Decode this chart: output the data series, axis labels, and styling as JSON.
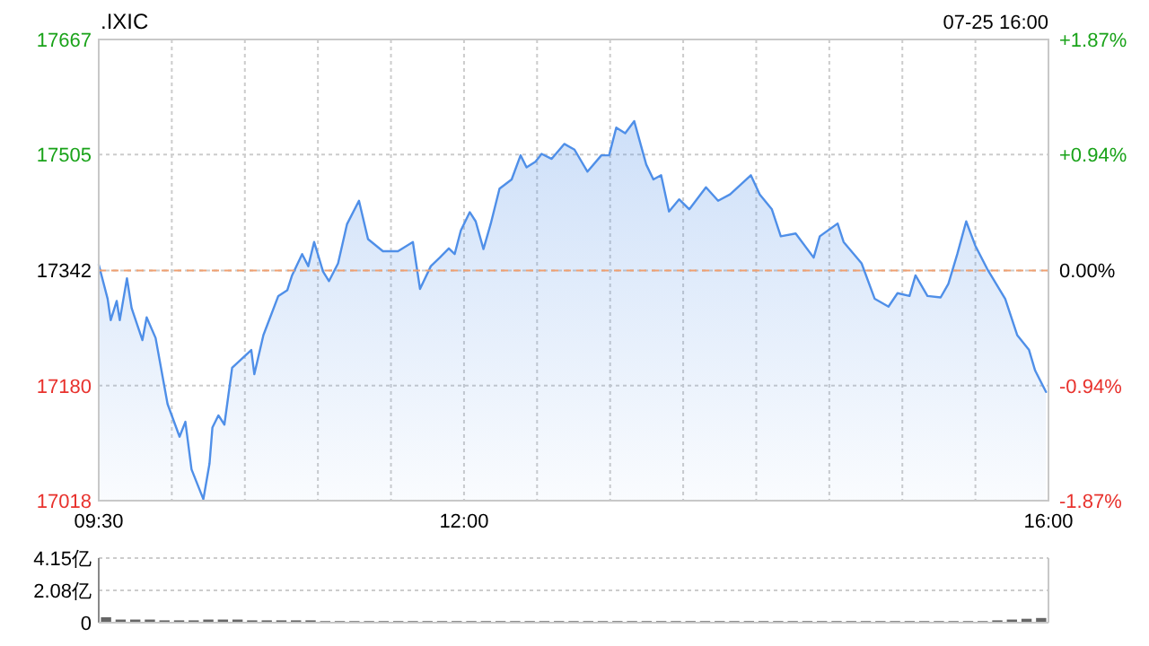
{
  "chart_data": [
    {
      "type": "area",
      "title": ".IXIC",
      "annotations": [
        "07-25 16:00"
      ],
      "x": [
        9.5,
        9.561,
        9.582,
        9.623,
        9.644,
        9.693,
        9.725,
        9.799,
        9.828,
        9.889,
        9.971,
        10.053,
        10.093,
        10.135,
        10.216,
        10.258,
        10.278,
        10.319,
        10.36,
        10.413,
        10.544,
        10.565,
        10.627,
        10.729,
        10.79,
        10.823,
        10.892,
        10.934,
        10.974,
        11.036,
        11.076,
        11.138,
        11.199,
        11.281,
        11.343,
        11.445,
        11.548,
        11.65,
        11.699,
        11.773,
        11.834,
        11.896,
        11.936,
        11.978,
        12.039,
        12.08,
        12.133,
        12.182,
        12.243,
        12.326,
        12.387,
        12.428,
        12.489,
        12.531,
        12.6,
        12.686,
        12.756,
        12.845,
        12.94,
        12.993,
        13.042,
        13.103,
        13.165,
        13.247,
        13.296,
        13.349,
        13.403,
        13.472,
        13.542,
        13.656,
        13.739,
        13.821,
        13.963,
        14.024,
        14.107,
        14.168,
        14.27,
        14.393,
        14.435,
        14.557,
        14.598,
        14.721,
        14.811,
        14.905,
        14.967,
        15.049,
        15.09,
        15.172,
        15.262,
        15.315,
        15.376,
        15.437,
        15.499,
        15.581,
        15.704,
        15.786,
        15.867,
        15.909,
        15.983
      ],
      "series": [
        {
          "color": "#4f8fe8",
          "values": [
            17350,
            17302,
            17272,
            17299,
            17272,
            17331,
            17289,
            17244,
            17276,
            17247,
            17154,
            17108,
            17129,
            17062,
            17020,
            17070,
            17121,
            17138,
            17125,
            17205,
            17230,
            17196,
            17251,
            17306,
            17314,
            17335,
            17365,
            17348,
            17382,
            17340,
            17327,
            17352,
            17407,
            17440,
            17386,
            17369,
            17369,
            17382,
            17316,
            17348,
            17360,
            17373,
            17365,
            17398,
            17424,
            17411,
            17372,
            17407,
            17457,
            17470,
            17504,
            17487,
            17495,
            17506,
            17499,
            17520,
            17512,
            17481,
            17504,
            17504,
            17543,
            17535,
            17552,
            17491,
            17470,
            17476,
            17425,
            17442,
            17428,
            17459,
            17440,
            17449,
            17476,
            17449,
            17428,
            17390,
            17394,
            17360,
            17390,
            17408,
            17382,
            17352,
            17302,
            17291,
            17310,
            17306,
            17335,
            17306,
            17304,
            17323,
            17365,
            17411,
            17377,
            17344,
            17302,
            17251,
            17230,
            17201,
            17171
          ]
        }
      ],
      "xlim": [
        9.5,
        16
      ],
      "xticks": [
        {
          "value": 9.5,
          "label": "09:30"
        },
        {
          "value": 10,
          "label": null
        },
        {
          "value": 10.5,
          "label": null
        },
        {
          "value": 11,
          "label": null
        },
        {
          "value": 11.5,
          "label": null
        },
        {
          "value": 12,
          "label": "12:00"
        },
        {
          "value": 12.5,
          "label": null
        },
        {
          "value": 13,
          "label": null
        },
        {
          "value": 13.5,
          "label": null
        },
        {
          "value": 14,
          "label": null
        },
        {
          "value": 14.5,
          "label": null
        },
        {
          "value": 15,
          "label": null
        },
        {
          "value": 15.5,
          "label": null
        },
        {
          "value": 16,
          "label": "16:00"
        }
      ],
      "ylim": [
        17018,
        17667
      ],
      "yticks": [
        17018,
        17180,
        17342,
        17505,
        17667
      ],
      "y2lim": [
        -1.87,
        1.87
      ],
      "y2ticks": [
        {
          "value": -1.87,
          "label": "-1.87%"
        },
        {
          "value": -0.94,
          "label": "-0.94%"
        },
        {
          "value": 0,
          "label": "0.00%"
        },
        {
          "value": 0.94,
          "label": "+0.94%"
        },
        {
          "value": 1.87,
          "label": "+1.87%"
        }
      ],
      "ref_lines": [
        {
          "axis": "y",
          "value": 17342,
          "color": "#f0a070",
          "line_style": "dashed"
        }
      ],
      "grid": true
    },
    {
      "type": "bar",
      "categories": [
        null,
        null,
        null,
        null,
        null,
        null,
        null,
        null,
        null,
        null,
        null,
        null,
        null,
        null,
        null,
        null,
        null,
        null,
        null,
        null,
        null,
        null,
        null,
        null,
        null,
        null,
        null,
        null,
        null,
        null,
        null,
        null,
        null,
        null,
        null,
        null,
        null,
        null,
        null,
        null,
        null,
        null,
        null,
        null,
        null,
        null,
        null,
        null,
        null,
        null,
        null,
        null,
        null,
        null,
        null,
        null,
        null,
        null,
        null,
        null,
        null,
        null,
        null,
        null,
        null
      ],
      "values": [
        0.35,
        0.2,
        0.2,
        0.2,
        0.15,
        0.15,
        0.15,
        0.2,
        0.2,
        0.2,
        0.15,
        0.15,
        0.15,
        0.15,
        0.15,
        0.1,
        0.1,
        0.1,
        0.1,
        0.1,
        0.1,
        0.1,
        0.1,
        0.1,
        0.1,
        0.1,
        0.1,
        0.1,
        0.1,
        0.1,
        0.1,
        0.1,
        0.1,
        0.1,
        0.1,
        0.1,
        0.1,
        0.1,
        0.1,
        0.1,
        0.1,
        0.1,
        0.1,
        0.1,
        0.1,
        0.1,
        0.1,
        0.1,
        0.1,
        0.1,
        0.1,
        0.1,
        0.1,
        0.1,
        0.1,
        0.1,
        0.1,
        0.1,
        0.1,
        0.1,
        0.1,
        0.15,
        0.2,
        0.25,
        0.3
      ],
      "color": "#666666",
      "ylim": [
        0,
        4.15
      ],
      "yticks": [
        0,
        {
          "value": 2.08,
          "label": "2.08亿"
        },
        {
          "value": 4.15,
          "label": "4.15亿"
        }
      ],
      "grid": "y",
      "tick_labels": "y"
    }
  ]
}
